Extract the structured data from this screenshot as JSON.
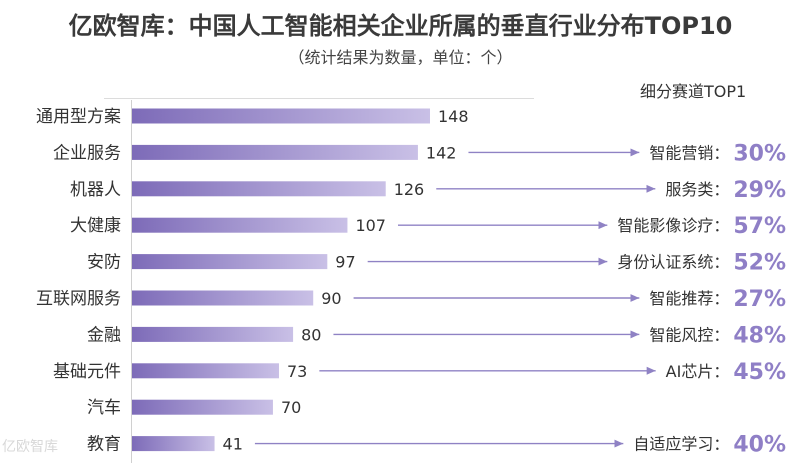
{
  "chart_data": {
    "type": "bar",
    "orientation": "horizontal",
    "title": "亿欧智库：中国人工智能相关企业所属的垂直行业分布TOP10",
    "subtitle": "（统计结果为数量，单位：个）",
    "side_header": "细分赛道TOP1",
    "categories": [
      "通用型方案",
      "企业服务",
      "机器人",
      "大健康",
      "安防",
      "互联网服务",
      "金融",
      "基础元件",
      "汽车",
      "教育"
    ],
    "values": [
      148,
      142,
      126,
      107,
      97,
      90,
      80,
      73,
      70,
      41
    ],
    "top_segments": [
      {
        "name": "",
        "percent": ""
      },
      {
        "name": "智能营销：",
        "percent": "30%"
      },
      {
        "name": "服务类：",
        "percent": "29%"
      },
      {
        "name": "智能影像诊疗：",
        "percent": "57%"
      },
      {
        "name": "身份认证系统：",
        "percent": "52%"
      },
      {
        "name": "智能推荐：",
        "percent": "27%"
      },
      {
        "name": "智能风控：",
        "percent": "48%"
      },
      {
        "name": "AI芯片：",
        "percent": "45%"
      },
      {
        "name": "",
        "percent": ""
      },
      {
        "name": "自适应学习：",
        "percent": "40%"
      }
    ],
    "xlim": [
      0,
      160
    ],
    "grid": false,
    "legend": "none",
    "colors": {
      "bar_start": "#7d6bb8",
      "bar_end": "#c9c0e6",
      "arrow": "#8f82c4",
      "percent": "#8f7fc6"
    }
  },
  "watermark": "亿欧智库"
}
